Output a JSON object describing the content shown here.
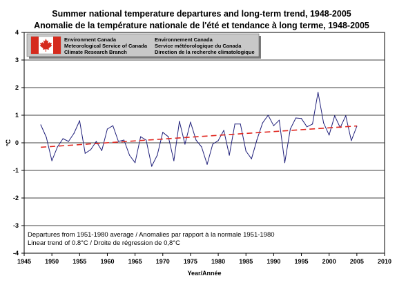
{
  "chart_data": {
    "type": "line",
    "title": "Summer national temperature departures and long-term trend, 1948-2005",
    "subtitle": "Anomalie de la température nationale de l'été et tendance à long terme, 1948-2005",
    "xlabel": "Year/Année",
    "ylabel": "°C",
    "xlim": [
      1945,
      2010
    ],
    "ylim": [
      -4,
      4
    ],
    "xticks": [
      "1945",
      "1950",
      "1955",
      "1960",
      "1965",
      "1970",
      "1975",
      "1980",
      "1985",
      "1990",
      "1995",
      "2000",
      "2005",
      "2010"
    ],
    "yticks": [
      "-4",
      "-3",
      "-2",
      "-1",
      "0",
      "1",
      "2",
      "3",
      "4"
    ],
    "grid": true,
    "series": [
      {
        "name": "",
        "color": "#1f1f7a",
        "x": [
          1948,
          1949,
          1950,
          1951,
          1952,
          1953,
          1954,
          1955,
          1956,
          1957,
          1958,
          1959,
          1960,
          1961,
          1962,
          1963,
          1964,
          1965,
          1966,
          1967,
          1968,
          1969,
          1970,
          1971,
          1972,
          1973,
          1974,
          1975,
          1976,
          1977,
          1978,
          1979,
          1980,
          1981,
          1982,
          1983,
          1984,
          1985,
          1986,
          1987,
          1988,
          1989,
          1990,
          1991,
          1992,
          1993,
          1994,
          1995,
          1996,
          1997,
          1998,
          1999,
          2000,
          2001,
          2002,
          2003,
          2004,
          2005
        ],
        "values": [
          0.65,
          0.2,
          -0.65,
          -0.15,
          0.15,
          0.05,
          0.35,
          0.8,
          -0.38,
          -0.25,
          0.05,
          -0.28,
          0.5,
          0.62,
          0.05,
          0.1,
          -0.45,
          -0.72,
          0.22,
          0.1,
          -0.85,
          -0.45,
          0.38,
          0.22,
          -0.65,
          0.78,
          -0.05,
          0.75,
          0.1,
          -0.15,
          -0.78,
          -0.05,
          0.08,
          0.45,
          -0.45,
          0.68,
          0.68,
          -0.3,
          -0.58,
          0.12,
          0.72,
          1.0,
          0.62,
          0.82,
          -0.72,
          0.5,
          0.9,
          0.88,
          0.58,
          0.68,
          1.83,
          0.72,
          0.28,
          0.98,
          0.55,
          0.98,
          0.08,
          0.6
        ]
      },
      {
        "name": "",
        "color": "#e0261f",
        "x": [
          1948,
          2005
        ],
        "values": [
          -0.16,
          0.61
        ]
      }
    ],
    "annotations": [
      "Departures from 1951-1980 average / Anomalies par rapport à la normale 1951-1980",
      "Linear trend of  0.8°C / Droite de régression de 0,8°C"
    ]
  },
  "banner": {
    "en_line1": "Environment Canada",
    "en_line2": "Meteorological Service of Canada",
    "en_line3": "Climate Research Branch",
    "fr_line1": "Environnement Canada",
    "fr_line2": "Service météorologique du Canada",
    "fr_line3": "Direction de la recherche climatologique",
    "flag_color": "#d52b1e",
    "background": "#c8c8c8"
  }
}
